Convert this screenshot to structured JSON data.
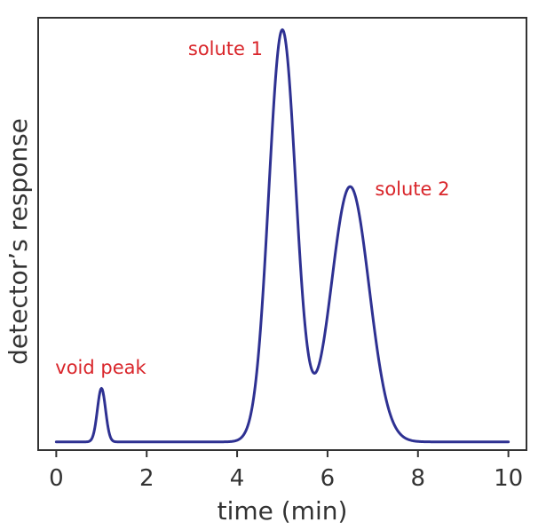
{
  "chart_data": {
    "type": "line",
    "xlabel": "time (min)",
    "ylabel": "detector’s response",
    "xlim": [
      -0.4,
      10.4
    ],
    "ylim": [
      0,
      1.05
    ],
    "xticks": [
      0,
      2,
      4,
      6,
      8,
      10
    ],
    "xtick_labels": [
      "0",
      "2",
      "4",
      "6",
      "8",
      "10"
    ],
    "y_tick_labels_shown": false,
    "grid": false,
    "baseline": 0.02,
    "peaks": [
      {
        "label": "void peak",
        "t": 1.0,
        "height": 0.13,
        "sigma": 0.09
      },
      {
        "label": "solute 1",
        "t": 5.0,
        "height": 1.0,
        "sigma": 0.3
      },
      {
        "label": "solute 2",
        "t": 6.5,
        "height": 0.62,
        "sigma": 0.42
      }
    ],
    "series": [
      {
        "color": "#2e3192"
      }
    ],
    "annotations": [
      {
        "text": "void peak",
        "x": 1.0,
        "y": 0.16
      },
      {
        "text": "solute 1",
        "x": 5.0,
        "y": 0.97
      },
      {
        "text": "solute 2",
        "x": 6.5,
        "y": 0.63
      }
    ],
    "annotation_color": "#d9252a"
  }
}
